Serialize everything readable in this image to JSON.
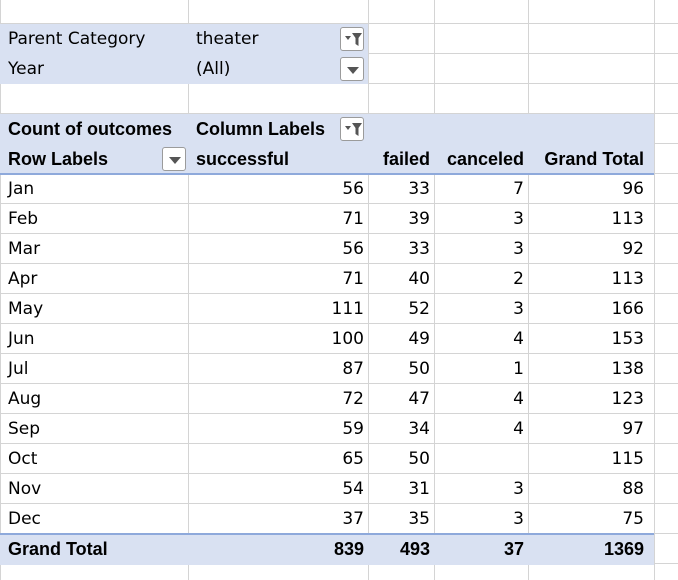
{
  "filters": [
    {
      "label": "Parent Category",
      "value": "theater",
      "icon": "filter-applied-icon"
    },
    {
      "label": "Year",
      "value": "(All)",
      "icon": "dropdown-arrow-icon"
    }
  ],
  "pivot": {
    "corner_label": "Count of outcomes",
    "column_labels": "Column Labels",
    "row_labels": "Row Labels",
    "columns": [
      "successful",
      "failed",
      "canceled",
      "Grand Total"
    ],
    "rows": [
      {
        "label": "Jan",
        "values": [
          "56",
          "33",
          "7",
          "96"
        ]
      },
      {
        "label": "Feb",
        "values": [
          "71",
          "39",
          "3",
          "113"
        ]
      },
      {
        "label": "Mar",
        "values": [
          "56",
          "33",
          "3",
          "92"
        ]
      },
      {
        "label": "Apr",
        "values": [
          "71",
          "40",
          "2",
          "113"
        ]
      },
      {
        "label": "May",
        "values": [
          "111",
          "52",
          "3",
          "166"
        ]
      },
      {
        "label": "Jun",
        "values": [
          "100",
          "49",
          "4",
          "153"
        ]
      },
      {
        "label": "Jul",
        "values": [
          "87",
          "50",
          "1",
          "138"
        ]
      },
      {
        "label": "Aug",
        "values": [
          "72",
          "47",
          "4",
          "123"
        ]
      },
      {
        "label": "Sep",
        "values": [
          "59",
          "34",
          "4",
          "97"
        ]
      },
      {
        "label": "Oct",
        "values": [
          "65",
          "50",
          "",
          "115"
        ]
      },
      {
        "label": "Nov",
        "values": [
          "54",
          "31",
          "3",
          "88"
        ]
      },
      {
        "label": "Dec",
        "values": [
          "37",
          "35",
          "3",
          "75"
        ]
      }
    ],
    "grand_total": {
      "label": "Grand Total",
      "values": [
        "839",
        "493",
        "37",
        "1369"
      ]
    }
  },
  "colors": {
    "header_band": "#d9e1f2",
    "rule": "#8ea9db",
    "gridline": "#d4d4d4"
  }
}
